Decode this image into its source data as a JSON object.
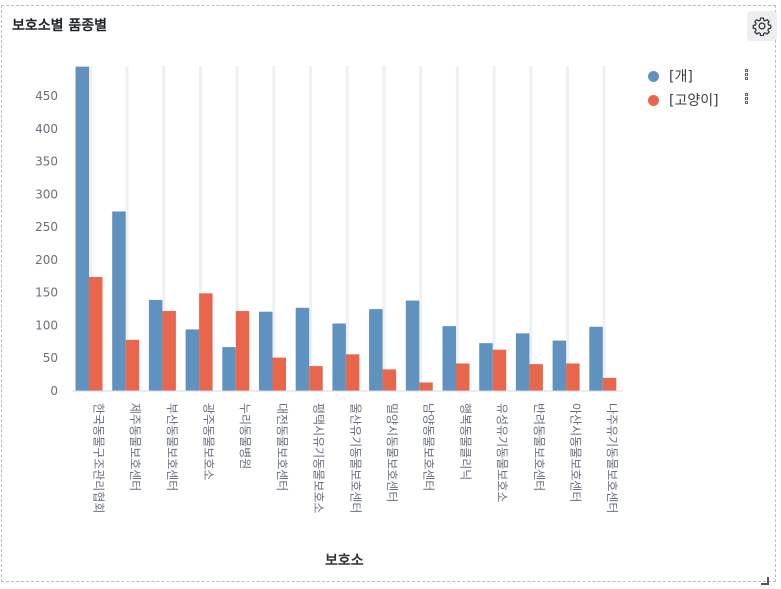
{
  "panel": {
    "title": "보호소별 품종별"
  },
  "chart_data": {
    "type": "bar",
    "xlabel": "보호소",
    "ylabel": "",
    "ylim": [
      0,
      500
    ],
    "yticks": [
      0,
      50,
      100,
      150,
      200,
      250,
      300,
      350,
      400,
      450
    ],
    "categories": [
      "한국동물구조관리협회",
      "제주동물보호센터",
      "부산동물보호센터",
      "광주동물보호소",
      "누리동물병원",
      "대전동물보호센터",
      "평택시유기동물보호소",
      "울산유기동물보호센터",
      "밀양시동물보호센터",
      "남양동물보호센터",
      "행복동물클리닉",
      "유성유기동물보호소",
      "반려동물보호센터",
      "아산시동물보호센터",
      "나주유기동물보호센터"
    ],
    "series": [
      {
        "name": "[개]",
        "color": "#6092c0",
        "values": [
          495,
          274,
          139,
          94,
          67,
          121,
          127,
          103,
          125,
          138,
          99,
          73,
          88,
          77,
          98
        ]
      },
      {
        "name": "[고양이]",
        "color": "#e7664c",
        "values": [
          174,
          78,
          122,
          149,
          122,
          51,
          38,
          56,
          33,
          13,
          42,
          63,
          41,
          42,
          20
        ]
      }
    ],
    "legend_position": "right",
    "grid": false
  }
}
